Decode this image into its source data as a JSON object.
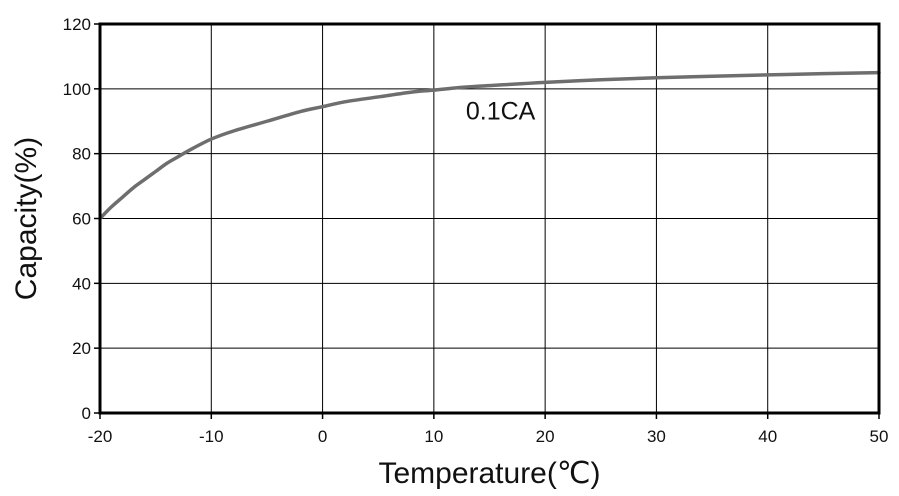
{
  "chart_data": {
    "type": "line",
    "title": "",
    "xlabel": "Temperature(℃)",
    "ylabel": "Capacity(%)",
    "xlim": [
      -20,
      50
    ],
    "ylim": [
      0,
      120
    ],
    "x_ticks": [
      -20,
      -10,
      0,
      10,
      20,
      30,
      40,
      50
    ],
    "y_ticks": [
      0,
      20,
      40,
      60,
      80,
      100,
      120
    ],
    "x_tick_labels": [
      "-20",
      "-10",
      "0",
      "10",
      "20",
      "30",
      "40",
      "50"
    ],
    "y_tick_labels": [
      "0",
      "20",
      "40",
      "60",
      "80",
      "100",
      "120"
    ],
    "grid": true,
    "series": [
      {
        "name": "0.1CA",
        "color": "#6e6e6e",
        "x": [
          -20,
          -19,
          -18,
          -17,
          -16,
          -15,
          -14,
          -13,
          -12,
          -10,
          -8,
          -5,
          -2,
          0,
          2,
          5,
          8,
          10,
          12,
          15,
          18,
          20,
          25,
          30,
          35,
          40,
          45,
          50
        ],
        "y": [
          60,
          63.5,
          66.5,
          69.5,
          72,
          74.5,
          77,
          79,
          81,
          84.5,
          87,
          90,
          93,
          94.5,
          96,
          97.5,
          99,
          99.6,
          100.3,
          101,
          101.6,
          102,
          102.8,
          103.4,
          103.9,
          104.3,
          104.7,
          105
        ]
      }
    ],
    "annotations": [
      {
        "text": "0.1CA",
        "x": 16,
        "y": 90.5
      }
    ]
  }
}
